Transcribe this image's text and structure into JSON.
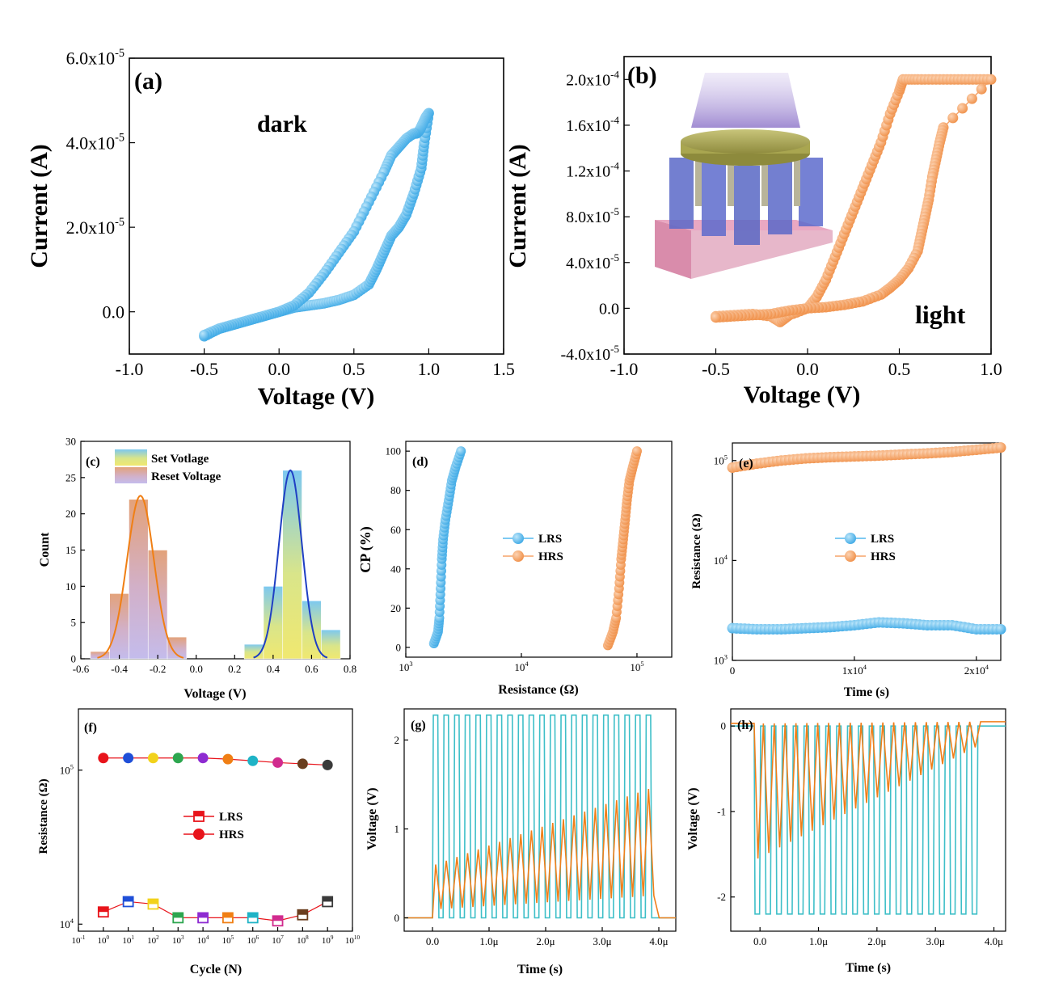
{
  "colors": {
    "blue": "#52B8EE",
    "blue_edge": "#3BA2DA",
    "orange": "#F5A36A",
    "orange_edge": "#E88A45",
    "trace_cyan": "#3EBFC8",
    "trace_orange": "#F07F1A",
    "fit_orange": "#F07F14",
    "fit_blue": "#1F3FC4"
  },
  "chart_data": [
    {
      "id": "a",
      "type": "scatter",
      "panel_label": "(a)",
      "annotation": "dark",
      "xlabel": "Voltage (V)",
      "ylabel": "Current (A)",
      "xlim": [
        -1.0,
        1.5
      ],
      "ylim": [
        -1e-05,
        6e-05
      ],
      "xticks": [
        "-1.0",
        "-0.5",
        "0.0",
        "0.5",
        "1.0",
        "1.5"
      ],
      "yticks": [
        "0.0",
        "2.0x10-5",
        "4.0x10-5",
        "6.0x10-5"
      ],
      "series": [
        {
          "x": [
            -0.5,
            -0.4,
            -0.3,
            -0.2,
            -0.1,
            0.0,
            0.1,
            0.2,
            0.3,
            0.4,
            0.5,
            0.6,
            0.65,
            0.7,
            0.75,
            0.8,
            0.85,
            0.9,
            0.95,
            0.97,
            1.0,
            0.99,
            0.98,
            0.96,
            0.94,
            0.92,
            0.9,
            0.85,
            0.8,
            0.75,
            0.7,
            0.6,
            0.5,
            0.4,
            0.3,
            0.2,
            0.1,
            0.0,
            -0.1,
            -0.2,
            -0.3,
            -0.4,
            -0.5
          ],
          "y": [
            -5.8e-06,
            -4e-06,
            -3e-06,
            -2e-06,
            -1e-06,
            0.0,
            1e-06,
            1.5e-06,
            2e-06,
            2.8e-06,
            4e-06,
            6.5e-06,
            1e-05,
            1.4e-05,
            1.8e-05,
            2e-05,
            2.3e-05,
            2.8e-05,
            3.4e-05,
            4e-05,
            4.7e-05,
            4.65e-05,
            4.6e-05,
            4.45e-05,
            4.3e-05,
            4.22e-05,
            4.22e-05,
            4.1e-05,
            3.9e-05,
            3.7e-05,
            3.3e-05,
            2.6e-05,
            1.9e-05,
            1.4e-05,
            9e-06,
            4.5e-06,
            1.5e-06,
            0.0,
            -1e-06,
            -2e-06,
            -3e-06,
            -4e-06,
            -5.5e-06
          ]
        }
      ]
    },
    {
      "id": "b",
      "type": "scatter",
      "panel_label": "(b)",
      "annotation": "light",
      "xlabel": "Voltage (V)",
      "ylabel": "Current (A)",
      "xlim": [
        -1.0,
        1.0
      ],
      "ylim": [
        -4e-05,
        0.00022
      ],
      "xticks": [
        "-1.0",
        "-0.5",
        "0.0",
        "0.5",
        "1.0"
      ],
      "yticks": [
        "-4.0x10-5",
        "0.0",
        "4.0x10-5",
        "8.0x10-5",
        "1.2x10-4",
        "1.6x10-4",
        "2.0x10-4"
      ],
      "series": [
        {
          "x": [
            -0.5,
            -0.4,
            -0.3,
            -0.2,
            -0.15,
            -0.1,
            0.0,
            0.05,
            0.1,
            0.15,
            0.2,
            0.25,
            0.3,
            0.35,
            0.4,
            0.45,
            0.5,
            0.52,
            0.6,
            0.7,
            0.8,
            0.9,
            1.0,
            0.74,
            0.72,
            0.7,
            0.68,
            0.66,
            0.64,
            0.62,
            0.6,
            0.55,
            0.5,
            0.45,
            0.4,
            0.3,
            0.2,
            0.1,
            0.0,
            -0.1,
            -0.2,
            -0.3,
            -0.4,
            -0.5
          ],
          "y": [
            -7e-06,
            -6e-06,
            -5e-06,
            -7e-06,
            -1.2e-05,
            -6e-06,
            0.0,
            1e-05,
            2.5e-05,
            4.5e-05,
            6.5e-05,
            8.5e-05,
            0.000105,
            0.000125,
            0.000145,
            0.00017,
            0.00019,
            0.0002,
            0.0002,
            0.0002,
            0.0002,
            0.0002,
            0.0002,
            0.000158,
            0.000145,
            0.00013,
            0.000115,
            9.5e-05,
            8e-05,
            6.5e-05,
            5e-05,
            3.5e-05,
            2.5e-05,
            1.8e-05,
            1.2e-05,
            6e-06,
            3e-06,
            1e-06,
            0.0,
            -2e-06,
            -5e-06,
            -6e-06,
            -7e-06,
            -8e-06
          ]
        }
      ]
    },
    {
      "id": "c",
      "type": "bar",
      "panel_label": "(c)",
      "xlabel": "Voltage (V)",
      "ylabel": "Count",
      "xlim": [
        -0.6,
        0.8
      ],
      "ylim": [
        0,
        30
      ],
      "xticks": [
        "-0.6",
        "-0.4",
        "-0.2",
        "0.0",
        "0.2",
        "0.4",
        "0.6",
        "0.8"
      ],
      "yticks": [
        "0",
        "5",
        "10",
        "15",
        "20",
        "25",
        "30"
      ],
      "legend": [
        "Set Votlage",
        "Reset Voltage"
      ],
      "series": [
        {
          "name": "Set Votlage",
          "bin_centers": [
            0.3,
            0.4,
            0.5,
            0.6,
            0.7
          ],
          "values": [
            2,
            10,
            26,
            8,
            4
          ],
          "fit_center": 0.49,
          "fit_sigma": 0.06,
          "fit_peak": 26
        },
        {
          "name": "Reset Voltage",
          "bin_centers": [
            -0.5,
            -0.4,
            -0.3,
            -0.2,
            -0.1
          ],
          "values": [
            1,
            9,
            22,
            15,
            3
          ],
          "fit_center": -0.29,
          "fit_sigma": 0.07,
          "fit_peak": 22.5
        }
      ]
    },
    {
      "id": "d",
      "type": "scatter",
      "panel_label": "(d)",
      "xlabel": "Resistance (Ω)",
      "ylabel": "CP (%)",
      "xscale": "log",
      "xlim": [
        1000,
        200000
      ],
      "ylim": [
        -5,
        105
      ],
      "xticks": [
        "10^3",
        "10^4",
        "10^5"
      ],
      "yticks": [
        "0",
        "20",
        "40",
        "60",
        "80",
        "100"
      ],
      "legend": [
        "LRS",
        "HRS"
      ],
      "series": [
        {
          "name": "LRS",
          "x": [
            1750,
            1900,
            1950,
            2000,
            2050,
            2100,
            2200,
            2350,
            2500,
            2700,
            3000
          ],
          "y": [
            2,
            8,
            15,
            30,
            45,
            55,
            65,
            75,
            85,
            92,
            100
          ]
        },
        {
          "name": "HRS",
          "x": [
            56000,
            62000,
            66000,
            70000,
            73000,
            76000,
            79000,
            82000,
            86000,
            92000,
            100000
          ],
          "y": [
            1,
            8,
            15,
            30,
            45,
            55,
            65,
            75,
            85,
            92,
            100
          ]
        }
      ]
    },
    {
      "id": "e",
      "type": "scatter",
      "panel_label": "(e)",
      "xlabel": "Time (s)",
      "ylabel": "Resistance (Ω)",
      "yscale": "log",
      "xlim": [
        0,
        22000
      ],
      "ylim": [
        1000,
        150000
      ],
      "xticks": [
        "0",
        "1x10^4",
        "2x10^4"
      ],
      "yticks": [
        "10^3",
        "10^4",
        "10^5"
      ],
      "legend": [
        "LRS",
        "HRS"
      ],
      "series": [
        {
          "name": "LRS",
          "x": [
            0,
            2000,
            4000,
            6000,
            8000,
            10000,
            12000,
            14000,
            16000,
            18000,
            20000,
            22000
          ],
          "y": [
            2100,
            2050,
            2050,
            2100,
            2150,
            2250,
            2400,
            2350,
            2250,
            2250,
            2050,
            2050
          ]
        },
        {
          "name": "HRS",
          "x": [
            0,
            2000,
            4000,
            6000,
            8000,
            10000,
            12000,
            14000,
            16000,
            18000,
            20000,
            22000
          ],
          "y": [
            85000,
            93000,
            100000,
            105000,
            108000,
            110000,
            112000,
            115000,
            118000,
            122000,
            128000,
            135000
          ]
        }
      ]
    },
    {
      "id": "f",
      "type": "scatter",
      "panel_label": "(f)",
      "xlabel": "Cycle (N)",
      "ylabel": "Resistance (Ω)",
      "xscale": "log",
      "yscale": "log",
      "xlim": [
        0.1,
        10000000000.0
      ],
      "ylim": [
        9000,
        250000
      ],
      "xticks": [
        "10^-1",
        "10^0",
        "10^1",
        "10^2",
        "10^3",
        "10^4",
        "10^5",
        "10^6",
        "10^7",
        "10^8",
        "10^9",
        "10^10"
      ],
      "yticks": [
        "10^4",
        "10^5"
      ],
      "legend": [
        "LRS",
        "HRS"
      ],
      "series": [
        {
          "name": "LRS",
          "x": [
            1,
            10,
            100,
            1000,
            10000,
            100000,
            1000000,
            10000000,
            100000000,
            1000000000
          ],
          "y": [
            12000,
            14000,
            13500,
            11000,
            11000,
            11000,
            11000,
            10500,
            11500,
            14000
          ]
        },
        {
          "name": "HRS",
          "x": [
            1,
            10,
            100,
            1000,
            10000,
            100000,
            1000000,
            10000000,
            100000000,
            1000000000
          ],
          "y": [
            120000,
            120000,
            120000,
            120000,
            120000,
            118000,
            115000,
            112000,
            110000,
            108000
          ]
        }
      ]
    },
    {
      "id": "g",
      "type": "line",
      "panel_label": "(g)",
      "xlabel": "Time (s)",
      "ylabel": "Voltage (V)",
      "xlim": [
        -0.5,
        4.3
      ],
      "ylim": [
        -0.15,
        2.35
      ],
      "xticks": [
        "0.0",
        "1.0μ",
        "2.0μ",
        "3.0μ",
        "4.0μ"
      ],
      "yticks": [
        "0",
        "1",
        "2"
      ],
      "pulses": 21,
      "pulse_start": 0.0,
      "pulse_end": 3.95,
      "series": [
        {
          "name": "input",
          "high": 2.28,
          "low": 0.0
        },
        {
          "name": "output",
          "start_peak": 0.6,
          "end_peak": 1.45,
          "start_trough": 0.1,
          "end_trough": 0.25
        }
      ]
    },
    {
      "id": "h",
      "type": "line",
      "panel_label": "(h)",
      "xlabel": "Time (s)",
      "ylabel": "Voltage (V)",
      "xlim": [
        -0.5,
        4.2
      ],
      "ylim": [
        -2.4,
        0.2
      ],
      "xticks": [
        "0.0",
        "1.0μ",
        "2.0μ",
        "3.0μ",
        "4.0μ"
      ],
      "yticks": [
        "-2",
        "-1",
        "0"
      ],
      "pulses": 21,
      "pulse_start": -0.1,
      "pulse_end": 3.8,
      "series": [
        {
          "name": "input",
          "high": 0.0,
          "low": -2.2
        },
        {
          "name": "output",
          "start_trough": -1.55,
          "end_trough": -0.25,
          "start_peak": 0.03,
          "end_peak": 0.05
        }
      ]
    }
  ]
}
